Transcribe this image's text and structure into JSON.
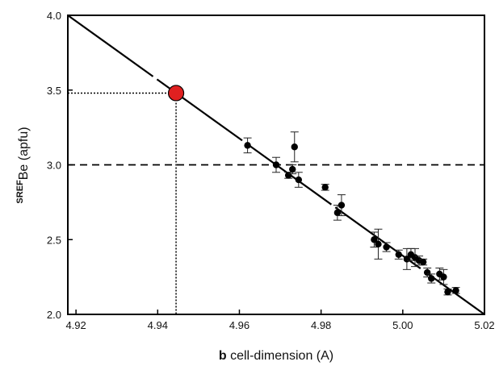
{
  "chart_data": {
    "type": "scatter",
    "xlabel_bold": "b",
    "xlabel_rest": " cell-dimension  (A)",
    "ylabel_sup": "SREF",
    "ylabel_rest": "Be  (apfu)",
    "xlim": [
      4.918,
      5.02
    ],
    "ylim": [
      2.0,
      4.0
    ],
    "x_ticks": [
      4.92,
      4.94,
      4.96,
      4.98,
      5.0,
      5.02
    ],
    "x_tick_labels": [
      "4.92",
      "4.94",
      "4.96",
      "4.98",
      "5.00",
      "5.02"
    ],
    "y_ticks": [
      2.0,
      2.5,
      3.0,
      3.5,
      4.0
    ],
    "y_tick_labels": [
      "2.0",
      "2.5",
      "3.0",
      "3.5",
      "4.0"
    ],
    "grid": false,
    "regression_line": {
      "x": [
        4.918,
        5.02
      ],
      "y": [
        4.0,
        2.0
      ],
      "style": "long-dash"
    },
    "horizontal_reference": {
      "y": 3.0,
      "style": "dashed"
    },
    "highlight_point": {
      "x": 4.9445,
      "y": 3.48,
      "color": "#e02020",
      "guides": "dotted lines to both axes"
    },
    "series": [
      {
        "marker": "filled-circle",
        "color": "#000000",
        "points": [
          {
            "x": 4.962,
            "y": 3.13,
            "err": 0.05
          },
          {
            "x": 4.969,
            "y": 3.0,
            "err": 0.05
          },
          {
            "x": 4.972,
            "y": 2.93,
            "err": 0.02
          },
          {
            "x": 4.973,
            "y": 2.97,
            "err": 0.03
          },
          {
            "x": 4.9735,
            "y": 3.12,
            "err": 0.1
          },
          {
            "x": 4.9745,
            "y": 2.9,
            "err": 0.05
          },
          {
            "x": 4.981,
            "y": 2.85,
            "err": 0.02
          },
          {
            "x": 4.984,
            "y": 2.68,
            "err": 0.05
          },
          {
            "x": 4.985,
            "y": 2.73,
            "err": 0.07
          },
          {
            "x": 4.993,
            "y": 2.5,
            "err": 0.05
          },
          {
            "x": 4.994,
            "y": 2.47,
            "err": 0.1
          },
          {
            "x": 4.996,
            "y": 2.45,
            "err": 0.03
          },
          {
            "x": 4.999,
            "y": 2.4,
            "err": 0.03
          },
          {
            "x": 5.001,
            "y": 2.37,
            "err": 0.07
          },
          {
            "x": 5.002,
            "y": 2.4,
            "err": 0.04
          },
          {
            "x": 5.003,
            "y": 2.38,
            "err": 0.06
          },
          {
            "x": 5.004,
            "y": 2.36,
            "err": 0.03
          },
          {
            "x": 5.005,
            "y": 2.35,
            "err": 0.02
          },
          {
            "x": 5.006,
            "y": 2.28,
            "err": 0.03
          },
          {
            "x": 5.007,
            "y": 2.24,
            "err": 0.03
          },
          {
            "x": 5.009,
            "y": 2.27,
            "err": 0.04
          },
          {
            "x": 5.01,
            "y": 2.25,
            "err": 0.05
          },
          {
            "x": 5.011,
            "y": 2.15,
            "err": 0.02
          },
          {
            "x": 5.013,
            "y": 2.16,
            "err": 0.02
          }
        ]
      }
    ]
  }
}
